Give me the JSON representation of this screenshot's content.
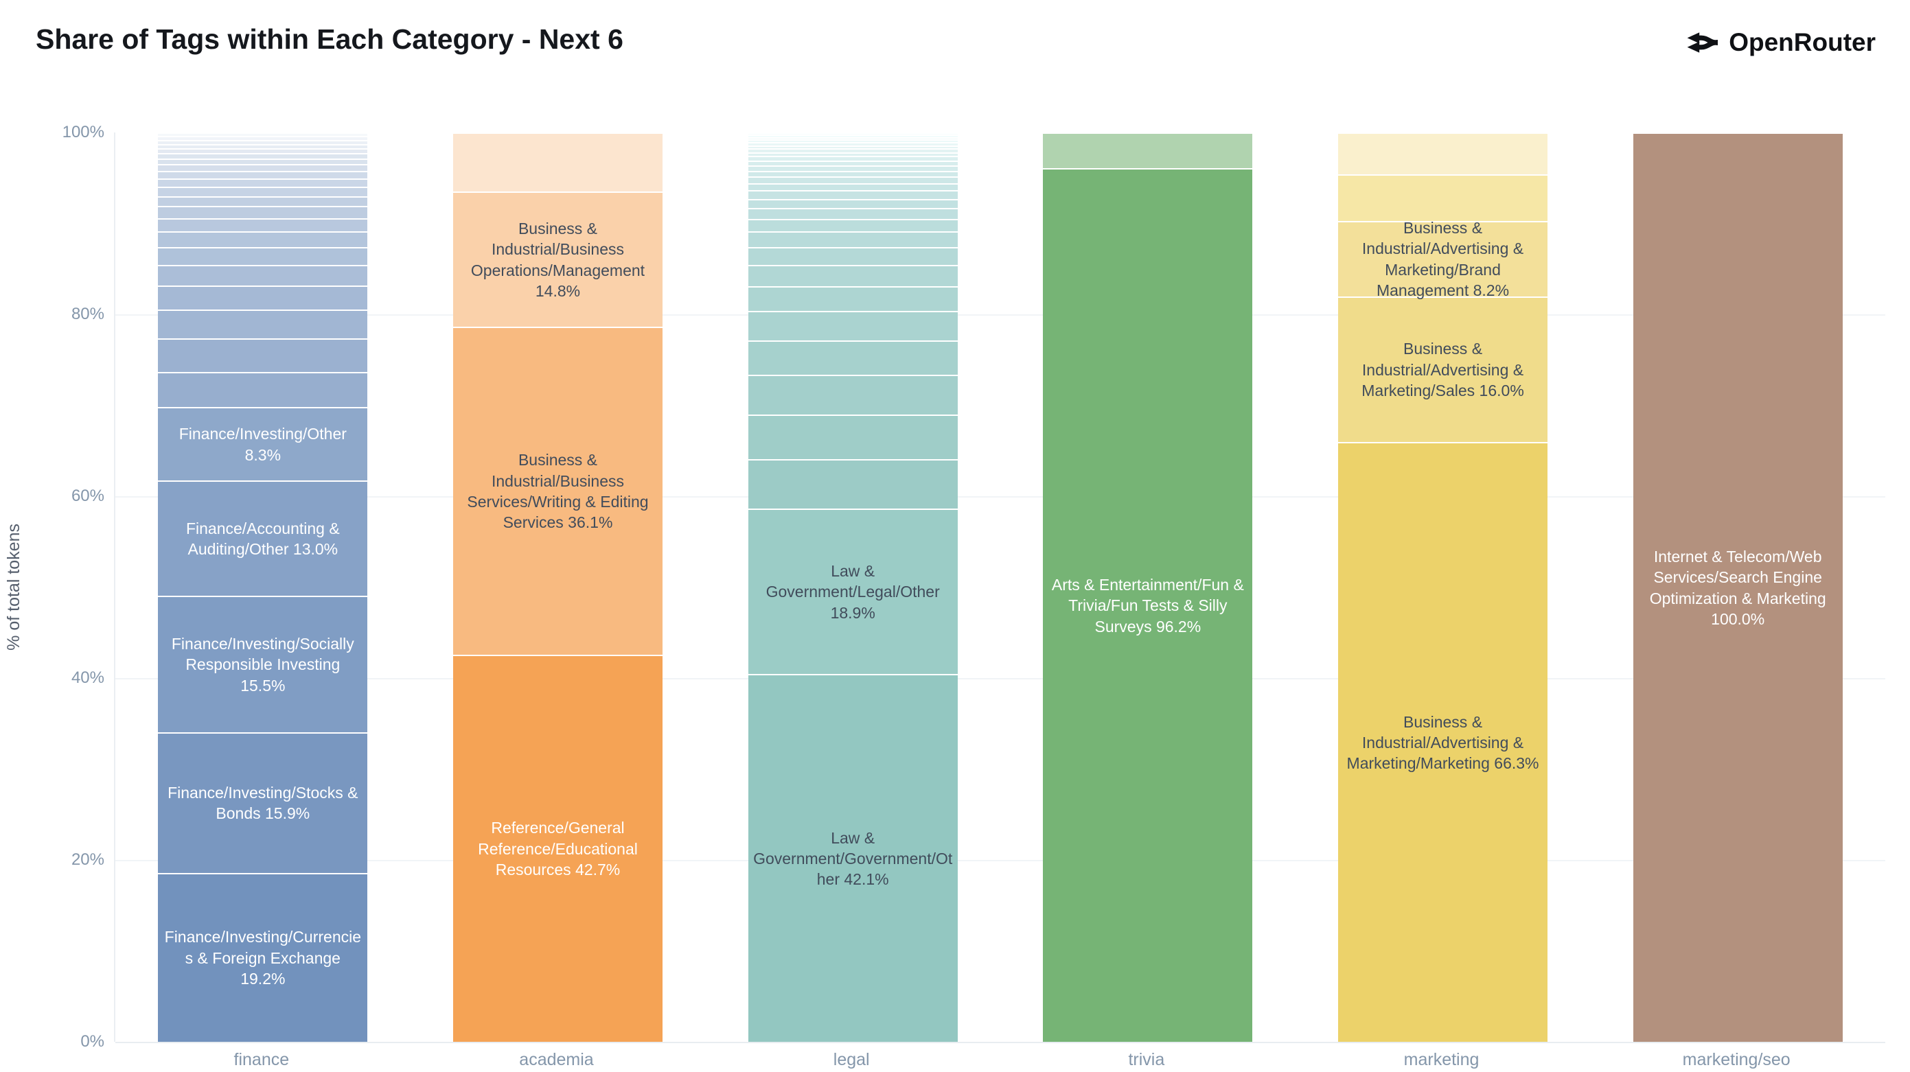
{
  "title": "Share of Tags within Each Category - Next 6",
  "logo": {
    "text": "OpenRouter",
    "icon": "fork-arrows-icon",
    "color": "#0f1115"
  },
  "colors": {
    "background": "#ffffff",
    "title_text": "#15181d",
    "axis_text": "#8496aa",
    "axis_title_text": "#565f6d",
    "gridline": "#f1f4f7",
    "baseline": "#e8edf1",
    "segment_separator": "#ffffff",
    "dark_label_text": "#414c5b",
    "light_label_text": "#ffffff",
    "finance_base": "#7292bd",
    "academia_base": "#f5a355",
    "legal_base": "#93c7c1",
    "trivia_base": "#76b475",
    "marketing_base": "#ecd26a",
    "marketing_seo_base": "#b3917e"
  },
  "chart_data": {
    "type": "bar",
    "stacked": true,
    "orientation": "vertical",
    "title": "Share of Tags within Each Category - Next 6",
    "xlabel": "",
    "ylabel": "% of total tokens",
    "ylim": [
      0,
      100
    ],
    "grid": true,
    "legend": false,
    "yticks": [
      {
        "label": "0%",
        "value": 0
      },
      {
        "label": "20%",
        "value": 20
      },
      {
        "label": "40%",
        "value": 40
      },
      {
        "label": "60%",
        "value": 60
      },
      {
        "label": "80%",
        "value": 80
      },
      {
        "label": "100%",
        "value": 100
      }
    ],
    "categories": [
      "finance",
      "academia",
      "legal",
      "trivia",
      "marketing",
      "marketing/seo"
    ],
    "bars": [
      {
        "category": "finance",
        "segments": [
          {
            "value": 19.2,
            "label": "Finance/Investing/Currencies & Foreign Exchange 19.2%",
            "color": "#7292bd",
            "text_color": "#ffffff"
          },
          {
            "value": 15.9,
            "label": "Finance/Investing/Stocks & Bonds 15.9%",
            "color": "#7997c0",
            "text_color": "#ffffff"
          },
          {
            "value": 15.5,
            "label": "Finance/Investing/Socially Responsible Investing 15.5%",
            "color": "#809dc4",
            "text_color": "#ffffff"
          },
          {
            "value": 13.0,
            "label": "Finance/Accounting & Auditing/Other 13.0%",
            "color": "#87a2c7",
            "text_color": "#ffffff"
          },
          {
            "value": 8.3,
            "label": "Finance/Investing/Other 8.3%",
            "color": "#8ea8ca",
            "text_color": "#ffffff"
          },
          {
            "value": 3.85,
            "label": null,
            "color": "#97aece"
          },
          {
            "value": 3.7,
            "label": null,
            "color": "#9bb1d0"
          },
          {
            "value": 3.1,
            "label": null,
            "color": "#a1b6d3"
          },
          {
            "value": 2.6,
            "label": null,
            "color": "#a5b9d5"
          },
          {
            "value": 2.2,
            "label": null,
            "color": "#abbed8"
          },
          {
            "value": 1.9,
            "label": null,
            "color": "#afc2da"
          },
          {
            "value": 1.6,
            "label": null,
            "color": "#b3c5dc"
          },
          {
            "value": 1.4,
            "label": null,
            "color": "#b8c8de"
          },
          {
            "value": 1.2,
            "label": null,
            "color": "#bdcce0"
          },
          {
            "value": 1.0,
            "label": null,
            "color": "#c1cfe2"
          },
          {
            "value": 0.9,
            "label": null,
            "color": "#c6d3e5"
          },
          {
            "value": 0.8,
            "label": null,
            "color": "#cad6e7"
          },
          {
            "value": 0.7,
            "label": null,
            "color": "#cfdae9"
          },
          {
            "value": 0.6,
            "label": null,
            "color": "#d5deeb"
          },
          {
            "value": 0.5,
            "label": null,
            "color": "#d9e2ed"
          },
          {
            "value": 0.45,
            "label": null,
            "color": "#dde5ef"
          },
          {
            "value": 0.4,
            "label": null,
            "color": "#e3e9f2"
          },
          {
            "value": 0.35,
            "label": null,
            "color": "#e7edf4"
          },
          {
            "value": 0.3,
            "label": null,
            "color": "#ebf0f6"
          },
          {
            "value": 0.3,
            "label": null,
            "color": "#f1f4f9"
          },
          {
            "value": 0.25,
            "label": null,
            "color": "#f5f8fb"
          }
        ]
      },
      {
        "category": "academia",
        "segments": [
          {
            "value": 42.7,
            "label": "Reference/General Reference/Educational Resources 42.7%",
            "color": "#f5a355",
            "text_color": "#ffffff"
          },
          {
            "value": 36.1,
            "label": "Business & Industrial/Business Services/Writing & Editing Services 36.1%",
            "color": "#f8ba80",
            "text_color": "#414c5b"
          },
          {
            "value": 14.8,
            "label": "Business & Industrial/Business Operations/Management 14.8%",
            "color": "#fad1aa",
            "text_color": "#414c5b"
          },
          {
            "value": 6.4,
            "label": null,
            "color": "#fce5cf"
          }
        ]
      },
      {
        "category": "legal",
        "segments": [
          {
            "value": 42.1,
            "label": "Law & Government/Government/Other 42.1%",
            "color": "#93c7c1",
            "text_color": "#414c5b"
          },
          {
            "value": 18.9,
            "label": "Law & Government/Legal/Other 18.9%",
            "color": "#9bccc6",
            "text_color": "#414c5b"
          },
          {
            "value": 5.5,
            "label": null,
            "color": "#9ccbc6"
          },
          {
            "value": 5.0,
            "label": null,
            "color": "#9fcdc8"
          },
          {
            "value": 4.4,
            "label": null,
            "color": "#a3cfcb"
          },
          {
            "value": 3.8,
            "label": null,
            "color": "#a6d1cd"
          },
          {
            "value": 3.2,
            "label": null,
            "color": "#aad3d0"
          },
          {
            "value": 2.7,
            "label": null,
            "color": "#add5d2"
          },
          {
            "value": 2.3,
            "label": null,
            "color": "#b1d7d5"
          },
          {
            "value": 1.9,
            "label": null,
            "color": "#b4d9d7"
          },
          {
            "value": 1.6,
            "label": null,
            "color": "#b8dbda"
          },
          {
            "value": 1.3,
            "label": null,
            "color": "#bbdddc"
          },
          {
            "value": 1.1,
            "label": null,
            "color": "#bfdfdf"
          },
          {
            "value": 0.9,
            "label": null,
            "color": "#c2e1e1"
          },
          {
            "value": 0.8,
            "label": null,
            "color": "#c6e3e3"
          },
          {
            "value": 0.7,
            "label": null,
            "color": "#c9e5e5"
          },
          {
            "value": 0.6,
            "label": null,
            "color": "#cde7e7"
          },
          {
            "value": 0.5,
            "label": null,
            "color": "#d0e9e9"
          },
          {
            "value": 0.45,
            "label": null,
            "color": "#d4ebeb"
          },
          {
            "value": 0.4,
            "label": null,
            "color": "#d7eded"
          },
          {
            "value": 0.35,
            "label": null,
            "color": "#dbefef"
          },
          {
            "value": 0.3,
            "label": null,
            "color": "#def1f1"
          },
          {
            "value": 0.25,
            "label": null,
            "color": "#e2f3f3"
          },
          {
            "value": 0.2,
            "label": null,
            "color": "#e5f5f5"
          },
          {
            "value": 0.2,
            "label": null,
            "color": "#e9f7f7"
          },
          {
            "value": 0.15,
            "label": null,
            "color": "#ecf9f9"
          },
          {
            "value": 0.15,
            "label": null,
            "color": "#f0fafa"
          },
          {
            "value": 0.1,
            "label": null,
            "color": "#f3fcfc"
          },
          {
            "value": 0.1,
            "label": null,
            "color": "#f7fdfd"
          }
        ]
      },
      {
        "category": "trivia",
        "segments": [
          {
            "value": 96.2,
            "label": "Arts & Entertainment/Fun & Trivia/Fun Tests & Silly Surveys 96.2%",
            "color": "#76b475",
            "text_color": "#ffffff"
          },
          {
            "value": 3.8,
            "label": null,
            "color": "#b0d3af"
          }
        ]
      },
      {
        "category": "marketing",
        "segments": [
          {
            "value": 66.3,
            "label": "Business & Industrial/Advertising & Marketing/Marketing 66.3%",
            "color": "#ecd26a",
            "text_color": "#414c5b"
          },
          {
            "value": 16.0,
            "label": "Business & Industrial/Advertising & Marketing/Sales 16.0%",
            "color": "#f0dc8b",
            "text_color": "#414c5b"
          },
          {
            "value": 8.2,
            "label": "Business & Industrial/Advertising & Marketing/Brand Management 8.2%",
            "color": "#f3e09a",
            "text_color": "#414c5b"
          },
          {
            "value": 5.0,
            "label": null,
            "color": "#f6e7a6"
          },
          {
            "value": 4.5,
            "label": null,
            "color": "#faf0cd"
          }
        ]
      },
      {
        "category": "marketing/seo",
        "segments": [
          {
            "value": 100.0,
            "label": "Internet & Telecom/Web Services/Search Engine Optimization & Marketing 100.0%",
            "color": "#b3917e",
            "text_color": "#ffffff"
          }
        ]
      }
    ]
  }
}
